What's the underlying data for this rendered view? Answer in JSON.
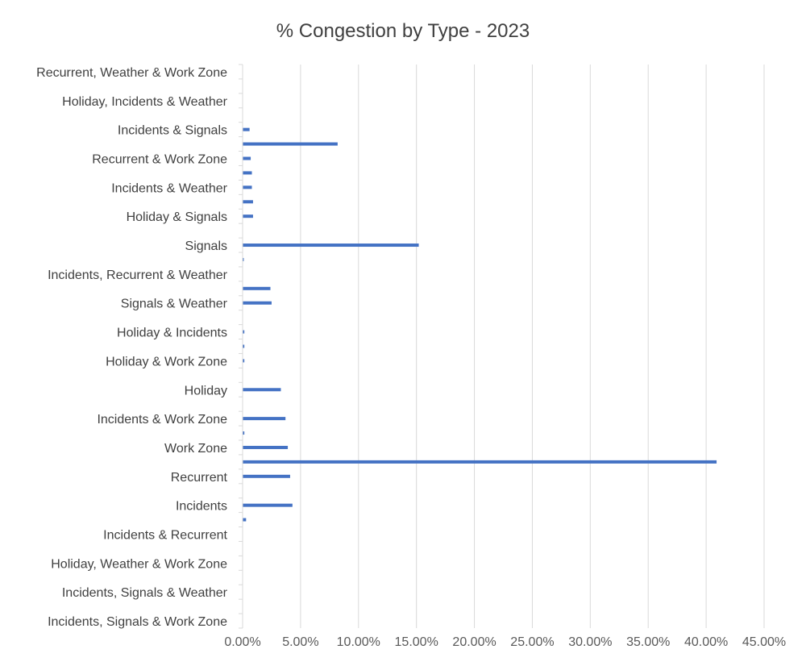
{
  "chart_data": {
    "type": "bar",
    "orientation": "horizontal",
    "title": "% Congestion by Type - 2023",
    "xlim": [
      0,
      45
    ],
    "x_ticks": [
      "0.00%",
      "5.00%",
      "10.00%",
      "15.00%",
      "20.00%",
      "25.00%",
      "30.00%",
      "35.00%",
      "40.00%",
      "45.00%"
    ],
    "grid": "vertical",
    "legend": "none",
    "bar_color": "#4472C4",
    "categories": [
      "Recurrent, Weather & Work Zone",
      "",
      "Holiday, Incidents & Weather",
      "",
      "Incidents & Signals",
      "",
      "Recurrent & Work Zone",
      "",
      "Incidents & Weather",
      "",
      "Holiday & Signals",
      "",
      "Signals",
      "",
      "Incidents, Recurrent & Weather",
      "",
      "Signals & Weather",
      "",
      "Holiday & Incidents",
      "",
      "Holiday & Work Zone",
      "",
      "Holiday",
      "",
      "Incidents & Work Zone",
      "",
      "Work Zone",
      "",
      "Recurrent",
      "",
      "Incidents",
      "",
      "Incidents & Recurrent",
      "",
      "Holiday, Weather & Work Zone",
      "",
      "Incidents, Signals & Weather",
      "",
      "Incidents, Signals & Work Zone"
    ],
    "values": [
      0,
      0,
      0,
      0,
      0.6,
      8.2,
      0.7,
      0.8,
      0.8,
      0.9,
      0.9,
      0,
      15.2,
      0.1,
      0,
      2.4,
      2.5,
      0,
      0.15,
      0.15,
      0.15,
      0,
      3.3,
      0,
      3.7,
      0.15,
      3.9,
      40.9,
      4.1,
      0,
      4.3,
      0.3,
      0,
      0,
      0,
      0,
      0,
      0,
      0
    ]
  }
}
